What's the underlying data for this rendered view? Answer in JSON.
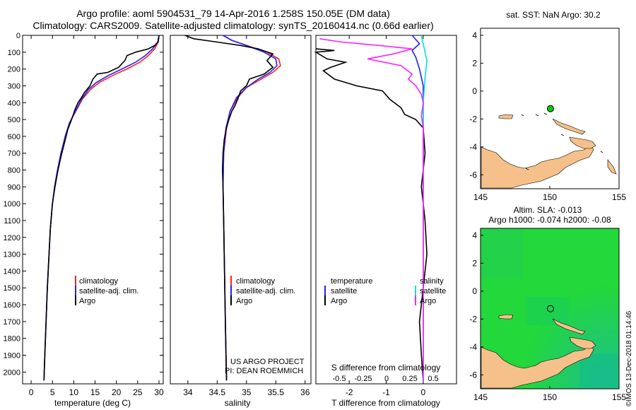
{
  "title": {
    "line1": "Argo profile: aoml 5904531_79 14-Apr-2016 1.258S 150.05E (DM data)",
    "line2": "Climatology: CARS2009. Satellite-adjusted climatology: synTS_20160414.nc (0.66d earlier)"
  },
  "footer": {
    "project": "US ARGO PROJECT",
    "pi": "PI: DEAN ROEMMICH",
    "stamp": "©IMOS 13-Dec-2018 01:14:46"
  },
  "colors": {
    "climatology": "#ff2020",
    "satellite": "#2020ff",
    "argo": "#000000",
    "sat_salinity": "#00e0e0",
    "argo_salinity": "#ff20ff",
    "land": "#f5c08a",
    "sea_green": "#00dd33",
    "argo_point": "#00cc00"
  },
  "chart_data": [
    {
      "type": "line",
      "name_key": "temperature",
      "xlabel": "temperature (deg C)",
      "ylabel": "",
      "xlim": [
        -2,
        31
      ],
      "ylim": [
        2070,
        0
      ],
      "xticks": [
        0,
        5,
        10,
        15,
        20,
        25,
        30
      ],
      "yticks": [
        0,
        100,
        200,
        300,
        400,
        500,
        600,
        700,
        800,
        900,
        1000,
        1100,
        1200,
        1300,
        1400,
        1500,
        1600,
        1700,
        1800,
        1900,
        2000
      ],
      "legend": [
        "climatology",
        "satellite-adj. clim.",
        "Argo"
      ],
      "series": [
        {
          "name": "climatology",
          "color": "#ff2020",
          "points": [
            [
              30,
              0
            ],
            [
              29.8,
              40
            ],
            [
              29,
              80
            ],
            [
              27.5,
              120
            ],
            [
              25.5,
              160
            ],
            [
              22.5,
              200
            ],
            [
              19,
              240
            ],
            [
              16,
              280
            ],
            [
              14,
              320
            ],
            [
              12,
              380
            ],
            [
              10.5,
              450
            ],
            [
              9,
              520
            ],
            [
              8,
              600
            ],
            [
              7,
              700
            ],
            [
              6.2,
              800
            ],
            [
              5.5,
              900
            ],
            [
              5,
              1000
            ],
            [
              4.5,
              1150
            ],
            [
              4.2,
              1300
            ],
            [
              3.8,
              1500
            ],
            [
              3.5,
              1700
            ],
            [
              3.2,
              1900
            ],
            [
              3,
              2050
            ]
          ]
        },
        {
          "name": "satellite-adj. clim.",
          "color": "#2020ff",
          "points": [
            [
              30,
              0
            ],
            [
              29.7,
              40
            ],
            [
              28.5,
              80
            ],
            [
              26.8,
              120
            ],
            [
              24.5,
              160
            ],
            [
              21.3,
              200
            ],
            [
              18,
              240
            ],
            [
              15.3,
              280
            ],
            [
              13.5,
              320
            ],
            [
              11.8,
              380
            ],
            [
              10.4,
              450
            ],
            [
              9,
              520
            ],
            [
              8,
              600
            ],
            [
              7,
              700
            ],
            [
              6.2,
              800
            ],
            [
              5.5,
              900
            ],
            [
              5,
              1000
            ],
            [
              4.5,
              1150
            ],
            [
              4.2,
              1300
            ],
            [
              3.8,
              1500
            ],
            [
              3.5,
              1700
            ],
            [
              3.2,
              1900
            ],
            [
              3,
              2050
            ]
          ]
        },
        {
          "name": "Argo",
          "color": "#000000",
          "points": [
            [
              30,
              0
            ],
            [
              29.8,
              40
            ],
            [
              29,
              60
            ],
            [
              27.5,
              80
            ],
            [
              24.5,
              100
            ],
            [
              22.5,
              120
            ],
            [
              22,
              150
            ],
            [
              20.5,
              190
            ],
            [
              18,
              220
            ],
            [
              15.5,
              230
            ],
            [
              14.5,
              260
            ],
            [
              13.8,
              300
            ],
            [
              12.5,
              340
            ],
            [
              11.8,
              370
            ],
            [
              11,
              400
            ],
            [
              10.3,
              440
            ],
            [
              9.5,
              500
            ],
            [
              8.6,
              560
            ],
            [
              7.8,
              640
            ],
            [
              7,
              720
            ],
            [
              6.3,
              800
            ],
            [
              5.6,
              900
            ],
            [
              5,
              1000
            ],
            [
              4.5,
              1150
            ],
            [
              4.2,
              1300
            ],
            [
              3.8,
              1500
            ],
            [
              3.5,
              1700
            ],
            [
              3.2,
              1900
            ],
            [
              3,
              2050
            ]
          ]
        }
      ]
    },
    {
      "type": "line",
      "name_key": "salinity",
      "xlabel": "salinity",
      "ylabel": "",
      "xlim": [
        33.7,
        36.1
      ],
      "ylim": [
        2070,
        0
      ],
      "xticks": [
        34,
        34.5,
        35,
        35.5,
        36
      ],
      "legend": [
        "climatology",
        "satellite-adj. clim.",
        "Argo"
      ],
      "series": [
        {
          "name": "climatology",
          "color": "#ff2020",
          "points": [
            [
              34.6,
              0
            ],
            [
              34.75,
              30
            ],
            [
              35,
              60
            ],
            [
              35.35,
              100
            ],
            [
              35.55,
              140
            ],
            [
              35.58,
              180
            ],
            [
              35.45,
              220
            ],
            [
              35.25,
              260
            ],
            [
              35,
              310
            ],
            [
              34.85,
              370
            ],
            [
              34.72,
              450
            ],
            [
              34.66,
              550
            ],
            [
              34.61,
              700
            ],
            [
              34.6,
              900
            ],
            [
              34.61,
              1100
            ],
            [
              34.62,
              1300
            ],
            [
              34.63,
              1500
            ],
            [
              34.64,
              1700
            ],
            [
              34.65,
              1900
            ],
            [
              34.66,
              2050
            ]
          ]
        },
        {
          "name": "satellite-adj. clim.",
          "color": "#2020ff",
          "points": [
            [
              34.6,
              0
            ],
            [
              34.75,
              30
            ],
            [
              35,
              60
            ],
            [
              35.3,
              100
            ],
            [
              35.5,
              140
            ],
            [
              35.52,
              180
            ],
            [
              35.4,
              220
            ],
            [
              35.2,
              260
            ],
            [
              35,
              310
            ],
            [
              34.83,
              370
            ],
            [
              34.72,
              450
            ],
            [
              34.65,
              550
            ],
            [
              34.61,
              700
            ],
            [
              34.6,
              900
            ],
            [
              34.61,
              1100
            ],
            [
              34.62,
              1300
            ],
            [
              34.63,
              1500
            ],
            [
              34.64,
              1700
            ],
            [
              34.65,
              1900
            ],
            [
              34.66,
              2050
            ]
          ]
        },
        {
          "name": "Argo",
          "color": "#000000",
          "points": [
            [
              33.95,
              0
            ],
            [
              34.1,
              20
            ],
            [
              34.5,
              40
            ],
            [
              34.9,
              60
            ],
            [
              35.2,
              80
            ],
            [
              35.45,
              110
            ],
            [
              35.35,
              150
            ],
            [
              35.45,
              190
            ],
            [
              35.3,
              230
            ],
            [
              35.05,
              260
            ],
            [
              35,
              300
            ],
            [
              34.9,
              330
            ],
            [
              34.85,
              380
            ],
            [
              34.8,
              420
            ],
            [
              34.75,
              450
            ],
            [
              34.7,
              500
            ],
            [
              34.65,
              560
            ],
            [
              34.62,
              620
            ],
            [
              34.6,
              700
            ],
            [
              34.59,
              800
            ],
            [
              34.6,
              900
            ],
            [
              34.61,
              1100
            ],
            [
              34.62,
              1300
            ],
            [
              34.63,
              1500
            ],
            [
              34.64,
              1700
            ],
            [
              34.65,
              1900
            ],
            [
              34.66,
              2050
            ]
          ]
        }
      ]
    },
    {
      "type": "line",
      "name_key": "difference",
      "xlabel": "T difference from climatology",
      "ylabel": "",
      "xlim": [
        -2.9,
        0.9
      ],
      "ylim": [
        2070,
        0
      ],
      "xticks": [
        -2,
        -1,
        0
      ],
      "top_axis_label": "S difference from climatology",
      "top_ticks": [
        "-0.5",
        "-0.25",
        "0",
        "0.25",
        "0.5"
      ],
      "legend_left": [
        "temperature",
        "satellite",
        "Argo"
      ],
      "legend_right": [
        "salinity",
        "satellite",
        "Argo"
      ],
      "series": [
        {
          "name": "T satellite",
          "color": "#2020ff",
          "points": [
            [
              -0.3,
              0
            ],
            [
              -0.1,
              50
            ],
            [
              -0.3,
              90
            ],
            [
              -0.2,
              130
            ],
            [
              -0.1,
              200
            ],
            [
              0,
              300
            ],
            [
              0,
              500
            ],
            [
              0,
              800
            ],
            [
              0,
              1200
            ],
            [
              0,
              1600
            ],
            [
              0,
              2050
            ]
          ]
        },
        {
          "name": "T Argo",
          "color": "#000000",
          "points": [
            [
              -2.9,
              80
            ],
            [
              -2.4,
              90
            ],
            [
              -2.9,
              100
            ],
            [
              -2.6,
              140
            ],
            [
              -2.1,
              160
            ],
            [
              -2.5,
              190
            ],
            [
              -2.7,
              210
            ],
            [
              -2.4,
              260
            ],
            [
              -1.8,
              300
            ],
            [
              -1.1,
              330
            ],
            [
              -0.9,
              380
            ],
            [
              -0.6,
              430
            ],
            [
              -0.5,
              470
            ],
            [
              -0.2,
              500
            ],
            [
              0,
              550
            ],
            [
              0.05,
              700
            ],
            [
              -0.05,
              900
            ],
            [
              0.05,
              1100
            ],
            [
              0.1,
              1300
            ],
            [
              0,
              1500
            ],
            [
              -0.1,
              1700
            ],
            [
              -0.05,
              1900
            ],
            [
              0,
              2050
            ]
          ]
        },
        {
          "name": "S satellite",
          "color": "#00e0e0",
          "points": [
            [
              -0.05,
              0
            ],
            [
              0,
              50
            ],
            [
              0.05,
              100
            ],
            [
              0.1,
              150
            ],
            [
              0.05,
              250
            ],
            [
              0,
              400
            ],
            [
              0,
              600
            ],
            [
              0,
              900
            ],
            [
              0,
              1300
            ],
            [
              0,
              1700
            ],
            [
              0,
              2050
            ]
          ]
        },
        {
          "name": "S Argo",
          "color": "#ff20ff",
          "points": [
            [
              -2.8,
              20
            ],
            [
              -2.2,
              40
            ],
            [
              -1.2,
              60
            ],
            [
              -0.3,
              80
            ],
            [
              -0.8,
              110
            ],
            [
              -1.5,
              140
            ],
            [
              -0.6,
              180
            ],
            [
              -0.3,
              230
            ],
            [
              -0.4,
              260
            ],
            [
              -0.2,
              300
            ],
            [
              -0.05,
              350
            ],
            [
              0,
              400
            ],
            [
              -0.05,
              480
            ],
            [
              0,
              550
            ],
            [
              0,
              700
            ],
            [
              0,
              1000
            ],
            [
              0,
              1500
            ],
            [
              0,
              2050
            ]
          ]
        }
      ]
    },
    {
      "type": "scatter",
      "name_key": "map_sst",
      "title": "sat. SST: NaN Argo: 30.2",
      "xlim": [
        145,
        155
      ],
      "ylim": [
        -7,
        4.5
      ],
      "xticks": [
        145,
        150,
        155
      ],
      "yticks": [
        4,
        2,
        0,
        -2,
        -4,
        -6
      ],
      "argo_point": [
        150.05,
        -1.258
      ]
    },
    {
      "type": "heatmap",
      "name_key": "map_sla",
      "title_line1": "Altim. SLA: -0.013",
      "title_line2": "Argo h1000: -0.074 h2000: -0.08",
      "xlim": [
        145,
        155
      ],
      "ylim": [
        -7,
        4.5
      ],
      "xticks": [
        145,
        150,
        155
      ],
      "yticks": [
        4,
        2,
        0,
        -2,
        -4,
        -6
      ],
      "argo_point": [
        150.05,
        -1.258
      ]
    }
  ]
}
